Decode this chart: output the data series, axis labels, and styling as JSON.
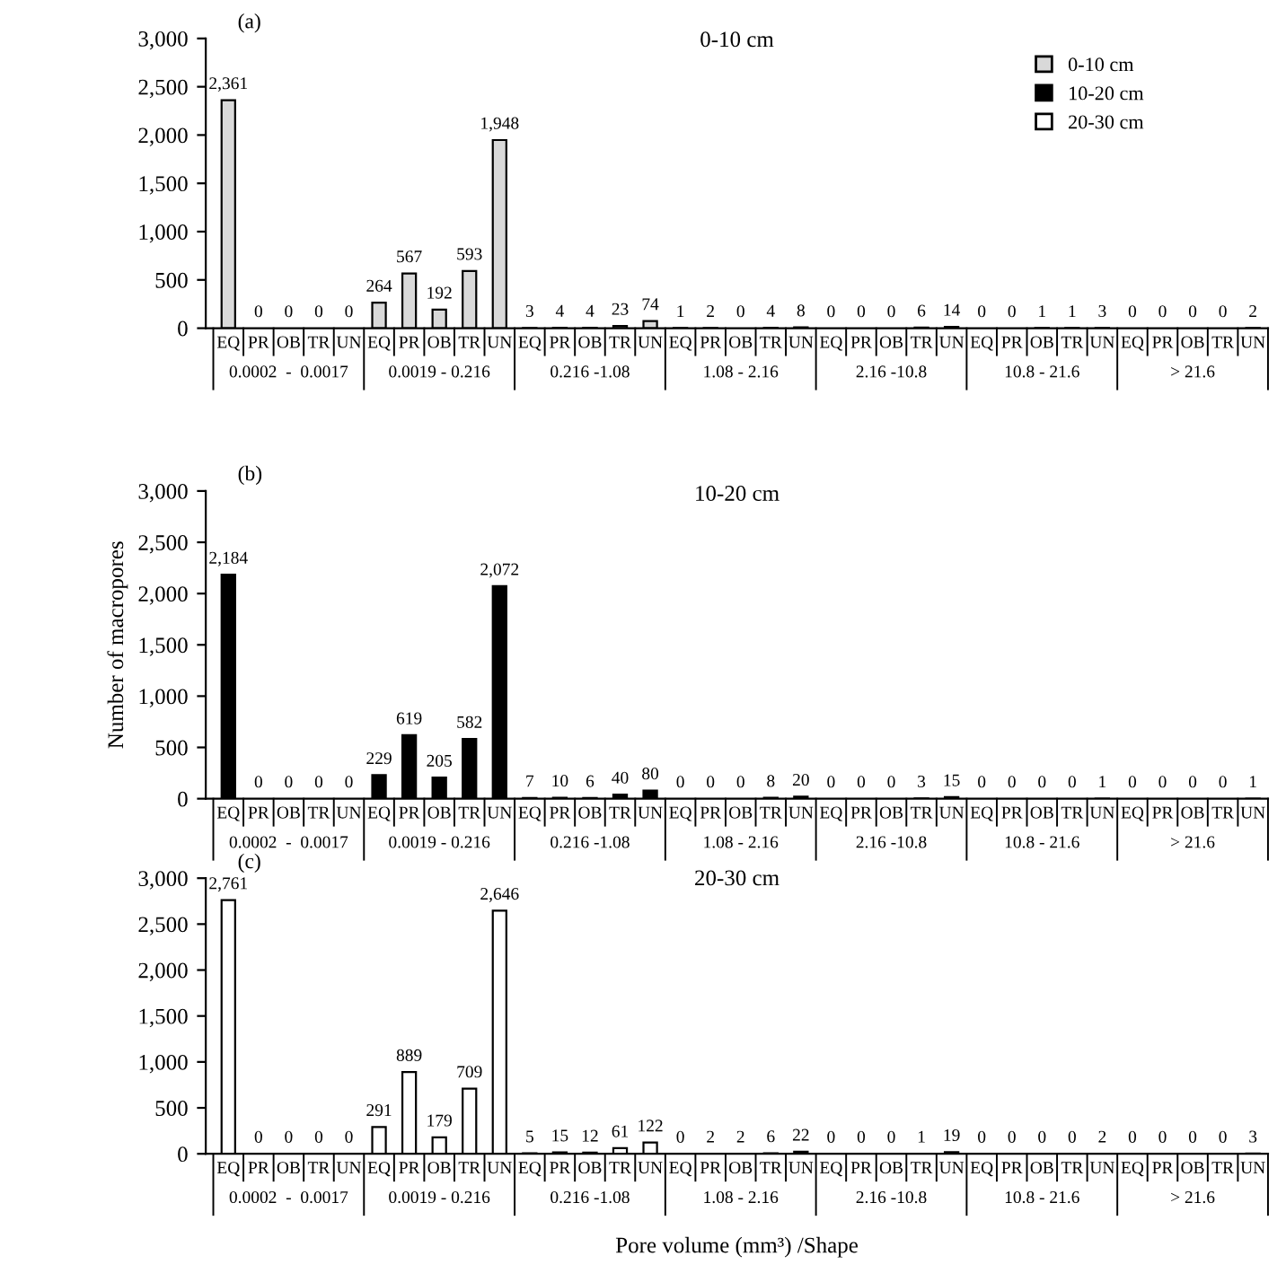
{
  "chart_data": [
    {
      "type": "bar",
      "title": "0-10 cm",
      "categories": [
        "EQ",
        "PR",
        "OB",
        "TR",
        "UN",
        "EQ",
        "PR",
        "OB",
        "TR",
        "UN",
        "EQ",
        "PR",
        "OB",
        "TR",
        "UN",
        "EQ",
        "PR",
        "OB",
        "TR",
        "UN",
        "EQ",
        "PR",
        "OB",
        "TR",
        "UN",
        "EQ",
        "PR",
        "OB",
        "TR",
        "UN",
        "EQ",
        "PR",
        "OB",
        "TR",
        "UN"
      ],
      "series": [
        {
          "name": "0-10 cm",
          "color": "#d9d9d9",
          "values": [
            2361,
            0,
            0,
            0,
            0,
            264,
            567,
            192,
            593,
            1948,
            3,
            4,
            4,
            23,
            74,
            1,
            2,
            0,
            4,
            8,
            0,
            0,
            0,
            6,
            14,
            0,
            0,
            1,
            1,
            3,
            0,
            0,
            0,
            0,
            2
          ],
          "value_labels": [
            "2,361",
            "0",
            "0",
            "0",
            "0",
            "264",
            "567",
            "192",
            "593",
            "1,948",
            "3",
            "4",
            "4",
            "23",
            "74",
            "1",
            "2",
            "0",
            "4",
            "8",
            "0",
            "0",
            "0",
            "6",
            "14",
            "0",
            "0",
            "1",
            "1",
            "3",
            "0",
            "0",
            "0",
            "0",
            "2"
          ]
        }
      ],
      "annotations": [
        "(a)",
        "0.0002  -  0.0017",
        "0.0019 - 0.216",
        "0.216 -1.08",
        "1.08 - 2.16",
        "2.16 -10.8",
        "10.8 - 21.6",
        "> 21.6"
      ],
      "ylim": [
        0,
        3000
      ],
      "yticks": [
        0,
        500,
        {
          "value": 1000,
          "label": "1,000"
        },
        {
          "value": 1500,
          "label": "1,500"
        },
        {
          "value": 2000,
          "label": "2,000"
        },
        {
          "value": 2500,
          "label": "2,500"
        },
        {
          "value": 3000,
          "label": "3,000"
        }
      ],
      "legend": "top right",
      "grid": false
    },
    {
      "type": "bar",
      "title": "10-20 cm",
      "ylabel": "Number of macropores",
      "categories": [
        "EQ",
        "PR",
        "OB",
        "TR",
        "UN",
        "EQ",
        "PR",
        "OB",
        "TR",
        "UN",
        "EQ",
        "PR",
        "OB",
        "TR",
        "UN",
        "EQ",
        "PR",
        "OB",
        "TR",
        "UN",
        "EQ",
        "PR",
        "OB",
        "TR",
        "UN",
        "EQ",
        "PR",
        "OB",
        "TR",
        "UN",
        "EQ",
        "PR",
        "OB",
        "TR",
        "UN"
      ],
      "series": [
        {
          "name": "10-20 cm",
          "color": "#000000",
          "values": [
            2184,
            0,
            0,
            0,
            0,
            229,
            619,
            205,
            582,
            2072,
            7,
            10,
            6,
            40,
            80,
            0,
            0,
            0,
            8,
            20,
            0,
            0,
            0,
            3,
            15,
            0,
            0,
            0,
            0,
            1,
            0,
            0,
            0,
            0,
            1
          ],
          "value_labels": [
            "2,184",
            "0",
            "0",
            "0",
            "0",
            "229",
            "619",
            "205",
            "582",
            "2,072",
            "7",
            "10",
            "6",
            "40",
            "80",
            "0",
            "0",
            "0",
            "8",
            "20",
            "0",
            "0",
            "0",
            "3",
            "15",
            "0",
            "0",
            "0",
            "0",
            "1",
            "0",
            "0",
            "0",
            "0",
            "1"
          ]
        }
      ],
      "annotations": [
        "(b)",
        "0.0002  -  0.0017",
        "0.0019 - 0.216",
        "0.216 -1.08",
        "1.08 - 2.16",
        "2.16 -10.8",
        "10.8 - 21.6",
        "> 21.6"
      ],
      "ylim": [
        0,
        3000
      ],
      "yticks": [
        0,
        500,
        {
          "value": 1000,
          "label": "1,000"
        },
        {
          "value": 1500,
          "label": "1,500"
        },
        {
          "value": 2000,
          "label": "2,000"
        },
        {
          "value": 2500,
          "label": "2,500"
        },
        {
          "value": 3000,
          "label": "3,000"
        }
      ],
      "grid": false
    },
    {
      "type": "bar",
      "title": "20-30 cm",
      "xlabel": "Pore volume (mm³) /Shape",
      "categories": [
        "EQ",
        "PR",
        "OB",
        "TR",
        "UN",
        "EQ",
        "PR",
        "OB",
        "TR",
        "UN",
        "EQ",
        "PR",
        "OB",
        "TR",
        "UN",
        "EQ",
        "PR",
        "OB",
        "TR",
        "UN",
        "EQ",
        "PR",
        "OB",
        "TR",
        "UN",
        "EQ",
        "PR",
        "OB",
        "TR",
        "UN",
        "EQ",
        "PR",
        "OB",
        "TR",
        "UN"
      ],
      "series": [
        {
          "name": "20-30 cm",
          "color": "#ffffff",
          "values": [
            2761,
            0,
            0,
            0,
            0,
            291,
            889,
            179,
            709,
            2646,
            5,
            15,
            12,
            61,
            122,
            0,
            2,
            2,
            6,
            22,
            0,
            0,
            0,
            1,
            19,
            0,
            0,
            0,
            0,
            2,
            0,
            0,
            0,
            0,
            3
          ],
          "value_labels": [
            "2,761",
            "0",
            "0",
            "0",
            "0",
            "291",
            "889",
            "179",
            "709",
            "2,646",
            "5",
            "15",
            "12",
            "61",
            "122",
            "0",
            "2",
            "2",
            "6",
            "22",
            "0",
            "0",
            "0",
            "1",
            "19",
            "0",
            "0",
            "0",
            "0",
            "2",
            "0",
            "0",
            "0",
            "0",
            "3"
          ]
        }
      ],
      "annotations": [
        "(c)",
        "0.0002  -  0.0017",
        "0.0019 - 0.216",
        "0.216 -1.08",
        "1.08 - 2.16",
        "2.16 -10.8",
        "10.8 - 21.6",
        "> 21.6"
      ],
      "ylim": [
        0,
        3000
      ],
      "yticks": [
        0,
        500,
        {
          "value": 1000,
          "label": "1,000"
        },
        {
          "value": 1500,
          "label": "1,500"
        },
        {
          "value": 2000,
          "label": "2,000"
        },
        {
          "value": 2500,
          "label": "2,500"
        },
        {
          "value": 3000,
          "label": "3,000"
        }
      ],
      "grid": false
    }
  ]
}
